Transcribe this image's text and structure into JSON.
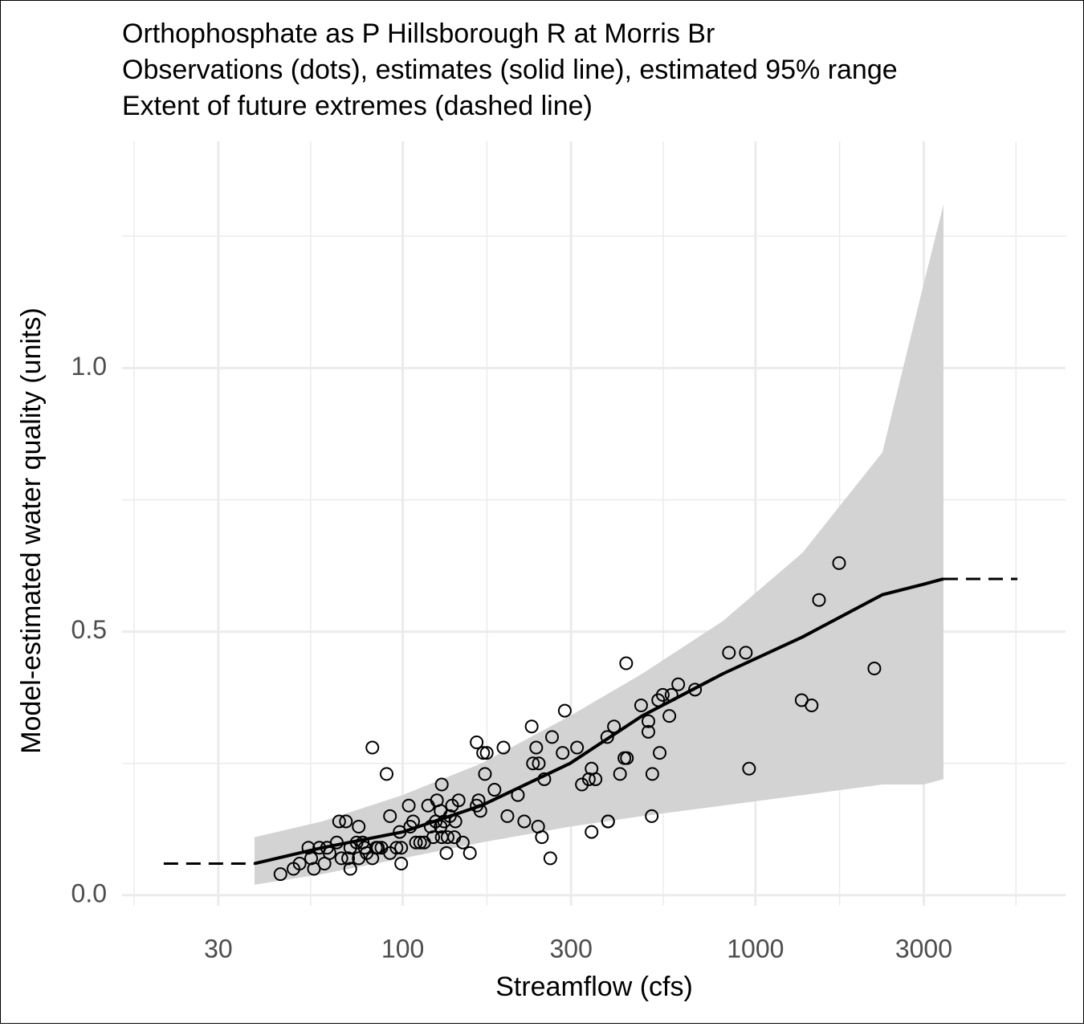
{
  "chart_data": {
    "type": "scatter",
    "title": [
      "Orthophosphate as P Hillsborough R at Morris Br",
      "Observations (dots), estimates (solid line), estimated 95% range",
      "Extent of future extremes (dashed line)"
    ],
    "x_label": "Streamflow (cfs)",
    "y_label": "Model-estimated water quality (units)",
    "x_scale": "log",
    "xlim": [
      16,
      7570
    ],
    "ylim": [
      -0.02,
      1.43
    ],
    "xticks": [
      30,
      100,
      300,
      1000,
      3000
    ],
    "yticks": [
      {
        "value": 0,
        "label": "0.0"
      },
      {
        "value": 0.5,
        "label": "0.5"
      },
      {
        "value": 1,
        "label": "1.0"
      }
    ],
    "x_minor_grid": [
      17.3,
      54.8,
      173.2,
      547.7,
      1732,
      5477
    ],
    "y_minor_grid": [
      0.25,
      0.75,
      1.25
    ],
    "grid": true,
    "point_color": "#000000",
    "line_color": "#000000",
    "band_color": "#d3d3d3",
    "points": {
      "x": [
        45,
        49,
        51,
        54,
        56,
        55,
        58,
        60,
        61,
        62,
        65,
        66,
        67,
        69,
        70,
        71,
        71,
        74,
        75,
        75,
        77,
        78,
        79,
        82,
        82,
        84,
        85,
        87,
        90,
        92,
        92,
        96,
        98,
        99,
        99,
        104,
        105,
        107,
        109,
        112,
        115,
        118,
        120,
        122,
        124,
        125,
        128,
        128,
        129,
        129,
        131,
        133,
        134,
        136,
        138,
        140,
        141,
        144,
        148,
        155,
        162,
        162,
        164,
        166,
        169,
        171,
        173,
        182,
        193,
        198,
        212,
        221,
        232,
        234,
        239,
        242,
        243,
        248,
        252,
        262,
        265,
        284,
        288,
        312,
        322,
        337,
        343,
        343,
        352,
        380,
        382,
        382,
        397,
        413,
        425,
        430,
        432,
        474,
        497,
        497,
        508,
        510,
        530,
        535,
        546,
        570,
        578,
        604,
        674,
        841,
        939,
        959,
        1352,
        1443,
        1514,
        1726,
        2173
      ],
      "y": [
        0.04,
        0.05,
        0.06,
        0.09,
        0.05,
        0.07,
        0.09,
        0.06,
        0.09,
        0.08,
        0.1,
        0.14,
        0.07,
        0.14,
        0.07,
        0.05,
        0.09,
        0.1,
        0.13,
        0.07,
        0.1,
        0.09,
        0.08,
        0.28,
        0.07,
        0.09,
        0.09,
        0.09,
        0.23,
        0.15,
        0.08,
        0.09,
        0.12,
        0.09,
        0.06,
        0.17,
        0.13,
        0.14,
        0.1,
        0.1,
        0.1,
        0.17,
        0.13,
        0.11,
        0.14,
        0.18,
        0.16,
        0.13,
        0.11,
        0.21,
        0.14,
        0.08,
        0.11,
        0.15,
        0.17,
        0.11,
        0.14,
        0.18,
        0.1,
        0.08,
        0.29,
        0.17,
        0.18,
        0.16,
        0.27,
        0.23,
        0.27,
        0.2,
        0.28,
        0.15,
        0.19,
        0.14,
        0.32,
        0.25,
        0.28,
        0.13,
        0.25,
        0.11,
        0.22,
        0.07,
        0.3,
        0.27,
        0.35,
        0.28,
        0.21,
        0.22,
        0.12,
        0.24,
        0.22,
        0.3,
        0.14,
        0.14,
        0.32,
        0.23,
        0.26,
        0.44,
        0.26,
        0.36,
        0.33,
        0.31,
        0.15,
        0.23,
        0.37,
        0.27,
        0.38,
        0.34,
        0.38,
        0.4,
        0.39,
        0.46,
        0.46,
        0.24,
        0.37,
        0.36,
        0.56,
        0.63,
        0.43
      ]
    },
    "estimate": {
      "x": [
        38,
        59,
        100,
        167,
        298,
        477,
        808,
        1361,
        2290,
        3000,
        3412
      ],
      "y": [
        0.06,
        0.09,
        0.12,
        0.17,
        0.25,
        0.34,
        0.42,
        0.49,
        0.57,
        0.59,
        0.6
      ],
      "lower": [
        0.02,
        0.04,
        0.07,
        0.1,
        0.13,
        0.15,
        0.17,
        0.19,
        0.21,
        0.21,
        0.22
      ],
      "upper": [
        0.11,
        0.14,
        0.19,
        0.25,
        0.34,
        0.42,
        0.52,
        0.65,
        0.84,
        1.16,
        1.31
      ]
    },
    "extremes": [
      {
        "x": [
          21,
          38
        ],
        "y": [
          0.06,
          0.06
        ]
      },
      {
        "x": [
          3412,
          5530
        ],
        "y": [
          0.6,
          0.6
        ]
      }
    ]
  }
}
